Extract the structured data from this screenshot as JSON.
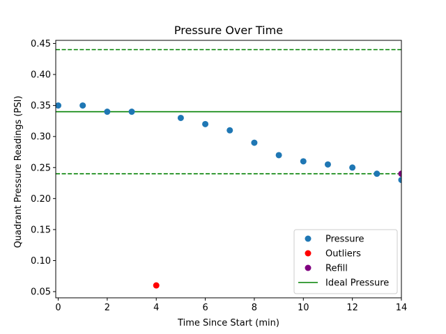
{
  "chart_data": {
    "type": "scatter",
    "title": "Pressure Over Time",
    "xlabel": "Time Since Start (min)",
    "ylabel": "Quadrant Pressure Readings (PSI)",
    "xlim": [
      -0.1,
      14
    ],
    "ylim": [
      0.04,
      0.455
    ],
    "xticks": [
      0,
      2,
      4,
      6,
      8,
      10,
      12,
      14
    ],
    "yticks": [
      0.05,
      0.1,
      0.15,
      0.2,
      0.25,
      0.3,
      0.35,
      0.4,
      0.45
    ],
    "ytick_labels": [
      "0.05",
      "0.10",
      "0.15",
      "0.20",
      "0.25",
      "0.30",
      "0.35",
      "0.40",
      "0.45"
    ],
    "series": [
      {
        "name": "Pressure",
        "color": "#1f77b4",
        "x": [
          0,
          1,
          2,
          3,
          5,
          6,
          7,
          8,
          9,
          10,
          11,
          12,
          13,
          14
        ],
        "y": [
          0.35,
          0.35,
          0.34,
          0.34,
          0.33,
          0.32,
          0.31,
          0.29,
          0.27,
          0.26,
          0.255,
          0.25,
          0.24,
          0.23
        ]
      },
      {
        "name": "Outliers",
        "color": "#ff0000",
        "x": [
          4
        ],
        "y": [
          0.06
        ]
      },
      {
        "name": "Refill",
        "color": "#800080",
        "x": [
          14
        ],
        "y": [
          0.24
        ]
      }
    ],
    "reference_lines": [
      {
        "name": "Ideal Pressure",
        "y": 0.34,
        "style": "solid",
        "color": "#008000"
      },
      {
        "y": 0.44,
        "style": "dashed",
        "color": "#008000"
      },
      {
        "y": 0.24,
        "style": "dashed",
        "color": "#008000"
      }
    ],
    "legend": {
      "placement": "lower-right",
      "entries": [
        {
          "label": "Pressure",
          "kind": "marker",
          "color": "#1f77b4"
        },
        {
          "label": "Outliers",
          "kind": "marker",
          "color": "#ff0000"
        },
        {
          "label": "Refill",
          "kind": "marker",
          "color": "#800080"
        },
        {
          "label": "Ideal Pressure",
          "kind": "line",
          "color": "#008000"
        }
      ]
    },
    "grid": false
  }
}
